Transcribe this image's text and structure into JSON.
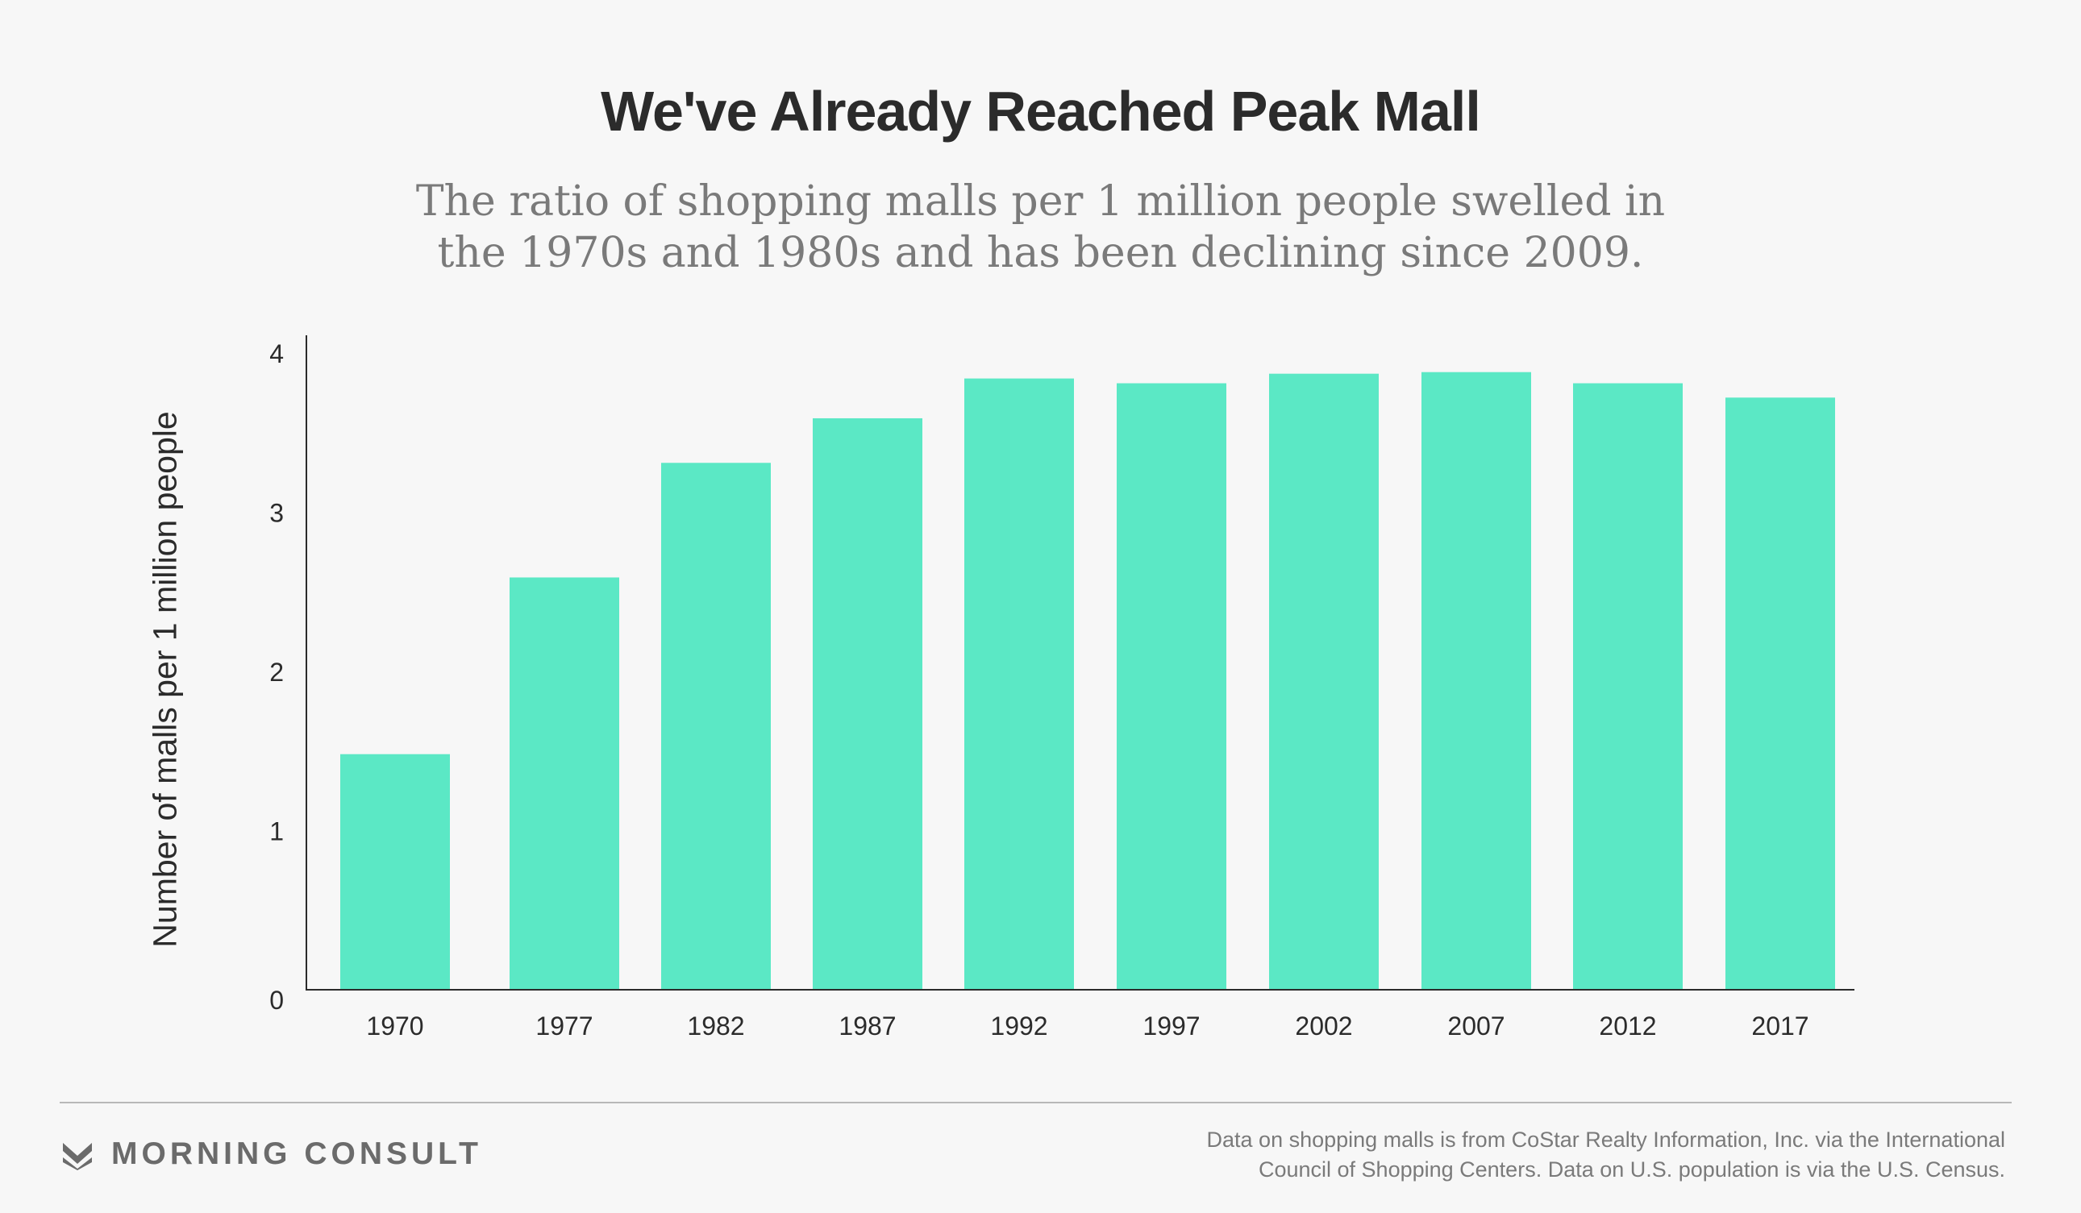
{
  "title": "We've Already Reached Peak Mall",
  "subtitle_lines": [
    "The ratio of shopping malls per 1 million people swelled in",
    "the 1970s and 1980s and has been declining since 2009."
  ],
  "chart_data": {
    "type": "bar",
    "title": "We've Already Reached Peak Mall",
    "xlabel": "",
    "ylabel": "Number of malls per 1 million people",
    "categories": [
      "1970",
      "1977",
      "1982",
      "1987",
      "1992",
      "1997",
      "2002",
      "2007",
      "2012",
      "2017"
    ],
    "values": [
      1.48,
      2.59,
      3.31,
      3.59,
      3.84,
      3.81,
      3.87,
      3.88,
      3.81,
      3.72
    ],
    "ylim": [
      0,
      4
    ],
    "yticks": [
      "0",
      "1",
      "2",
      "3",
      "4"
    ],
    "grid": false,
    "bar_color": "#5be8c5"
  },
  "footer": {
    "brand": "MORNING CONSULT",
    "brand_icon": "chevron-logo-icon",
    "source_lines": [
      "Data on shopping malls is from CoStar Realty Information, Inc. via the International",
      "Council of Shopping Centers. Data on U.S. population is via the U.S. Census."
    ]
  }
}
